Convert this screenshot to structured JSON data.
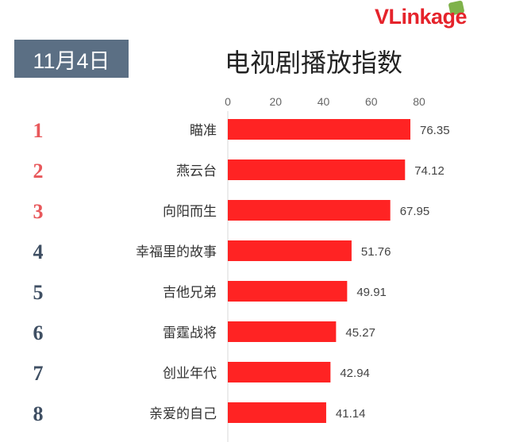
{
  "brand": {
    "logo_text": "VLinkage"
  },
  "header": {
    "date": "11月4日",
    "title": "电视剧播放指数"
  },
  "colors": {
    "bar": "#ff2323",
    "rank_top": "#e8585b",
    "rank_rest": "#3f4f63",
    "badge": "#5b6f84"
  },
  "chart_data": {
    "type": "bar",
    "orientation": "horizontal",
    "title": "电视剧播放指数",
    "categories": [
      "瞄准",
      "燕云台",
      "向阳而生",
      "幸福里的故事",
      "吉他兄弟",
      "雷霆战将",
      "创业年代",
      "亲爱的自己"
    ],
    "ranks": [
      "1",
      "2",
      "3",
      "4",
      "5",
      "6",
      "7",
      "8"
    ],
    "values": [
      76.35,
      74.12,
      67.95,
      51.76,
      49.91,
      45.27,
      42.94,
      41.14
    ],
    "value_labels": [
      "76.35",
      "74.12",
      "67.95",
      "51.76",
      "49.91",
      "45.27",
      "42.94",
      "41.14"
    ],
    "xlim": [
      0,
      80
    ],
    "x_ticks": [
      "0",
      "20",
      "40",
      "60",
      "80"
    ],
    "x_axis_position": "top",
    "grid": false,
    "legend": "none"
  }
}
